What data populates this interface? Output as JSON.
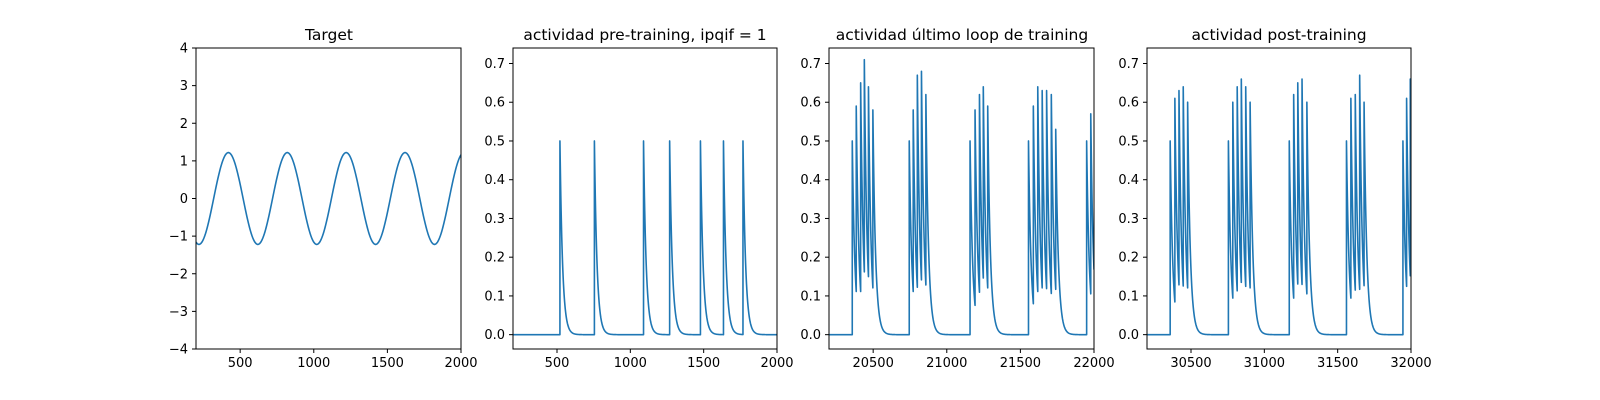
{
  "chart_data": [
    {
      "type": "line",
      "title": "Target",
      "xlabel": "",
      "ylabel": "",
      "xlim": [
        200,
        2000
      ],
      "ylim": [
        -4,
        4
      ],
      "xticks": [
        500,
        1000,
        1500,
        2000
      ],
      "yticks": [
        -4,
        -3,
        -2,
        -1,
        0,
        1,
        2,
        3,
        4
      ],
      "grid": false,
      "series": [
        {
          "color": "#1f77b4",
          "kind": "sine",
          "amplitude": 1.22,
          "period": 400,
          "peaks_x": [
            420,
            820,
            1220,
            1620
          ],
          "troughs_x": [
            220,
            620,
            1020,
            1420,
            1820
          ]
        }
      ]
    },
    {
      "type": "line",
      "title": "actividad pre-training, ipqif = 1",
      "xlabel": "",
      "ylabel": "",
      "xlim": [
        200,
        2000
      ],
      "ylim": [
        -0.037,
        0.74
      ],
      "xticks": [
        500,
        1000,
        1500,
        2000
      ],
      "yticks": [
        0.0,
        0.1,
        0.2,
        0.3,
        0.4,
        0.5,
        0.6,
        0.7
      ],
      "grid": false,
      "series": [
        {
          "color": "#1f77b4",
          "kind": "spike-train",
          "spikes": [
            {
              "x": 520,
              "y": 0.5
            },
            {
              "x": 755,
              "y": 0.5
            },
            {
              "x": 1090,
              "y": 0.5
            },
            {
              "x": 1268,
              "y": 0.5
            },
            {
              "x": 1478,
              "y": 0.5
            },
            {
              "x": 1635,
              "y": 0.5
            },
            {
              "x": 1768,
              "y": 0.5
            }
          ]
        }
      ]
    },
    {
      "type": "line",
      "title": "actividad último loop de training",
      "xlabel": "",
      "ylabel": "",
      "xlim": [
        20200,
        22000
      ],
      "ylim": [
        -0.037,
        0.74
      ],
      "xticks": [
        20500,
        21000,
        21500,
        22000
      ],
      "yticks": [
        0.0,
        0.1,
        0.2,
        0.3,
        0.4,
        0.5,
        0.6,
        0.7
      ],
      "grid": false,
      "series": [
        {
          "color": "#1f77b4",
          "kind": "spike-train",
          "spikes": [
            {
              "x": 20358,
              "y": 0.5
            },
            {
              "x": 20385,
              "y": 0.59
            },
            {
              "x": 20415,
              "y": 0.65
            },
            {
              "x": 20440,
              "y": 0.71
            },
            {
              "x": 20468,
              "y": 0.64
            },
            {
              "x": 20498,
              "y": 0.58
            },
            {
              "x": 20745,
              "y": 0.5
            },
            {
              "x": 20772,
              "y": 0.58
            },
            {
              "x": 20800,
              "y": 0.67
            },
            {
              "x": 20828,
              "y": 0.68
            },
            {
              "x": 20858,
              "y": 0.62
            },
            {
              "x": 21158,
              "y": 0.5
            },
            {
              "x": 21192,
              "y": 0.58
            },
            {
              "x": 21222,
              "y": 0.62
            },
            {
              "x": 21248,
              "y": 0.64
            },
            {
              "x": 21278,
              "y": 0.59
            },
            {
              "x": 21555,
              "y": 0.5
            },
            {
              "x": 21588,
              "y": 0.59
            },
            {
              "x": 21618,
              "y": 0.64
            },
            {
              "x": 21648,
              "y": 0.63
            },
            {
              "x": 21678,
              "y": 0.63
            },
            {
              "x": 21710,
              "y": 0.62
            },
            {
              "x": 21740,
              "y": 0.53
            },
            {
              "x": 21950,
              "y": 0.5
            },
            {
              "x": 21978,
              "y": 0.57
            }
          ]
        }
      ]
    },
    {
      "type": "line",
      "title": "actividad post-training",
      "xlabel": "",
      "ylabel": "",
      "xlim": [
        30200,
        32000
      ],
      "ylim": [
        -0.037,
        0.74
      ],
      "xticks": [
        30500,
        31000,
        31500,
        32000
      ],
      "yticks": [
        0.0,
        0.1,
        0.2,
        0.3,
        0.4,
        0.5,
        0.6,
        0.7
      ],
      "grid": false,
      "series": [
        {
          "color": "#1f77b4",
          "kind": "spike-train",
          "spikes": [
            {
              "x": 30358,
              "y": 0.5
            },
            {
              "x": 30390,
              "y": 0.61
            },
            {
              "x": 30418,
              "y": 0.63
            },
            {
              "x": 30447,
              "y": 0.64
            },
            {
              "x": 30477,
              "y": 0.6
            },
            {
              "x": 30755,
              "y": 0.5
            },
            {
              "x": 30785,
              "y": 0.6
            },
            {
              "x": 30815,
              "y": 0.64
            },
            {
              "x": 30843,
              "y": 0.66
            },
            {
              "x": 30873,
              "y": 0.64
            },
            {
              "x": 30903,
              "y": 0.6
            },
            {
              "x": 31170,
              "y": 0.5
            },
            {
              "x": 31200,
              "y": 0.62
            },
            {
              "x": 31228,
              "y": 0.65
            },
            {
              "x": 31257,
              "y": 0.66
            },
            {
              "x": 31290,
              "y": 0.6
            },
            {
              "x": 31560,
              "y": 0.5
            },
            {
              "x": 31590,
              "y": 0.61
            },
            {
              "x": 31620,
              "y": 0.62
            },
            {
              "x": 31650,
              "y": 0.67
            },
            {
              "x": 31680,
              "y": 0.6
            },
            {
              "x": 31945,
              "y": 0.5
            },
            {
              "x": 31970,
              "y": 0.61
            },
            {
              "x": 31995,
              "y": 0.66
            }
          ]
        }
      ]
    }
  ]
}
